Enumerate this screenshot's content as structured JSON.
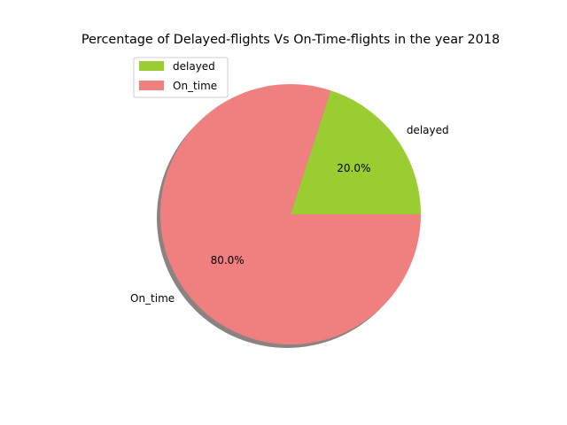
{
  "chart_data": {
    "type": "pie",
    "title": "Percentage of Delayed-flights Vs On-Time-flights in the year 2018",
    "categories": [
      "delayed",
      "On_time"
    ],
    "values": [
      20.0,
      80.0
    ],
    "percent_labels": [
      "20.0%",
      "80.0%"
    ],
    "colors": [
      "#9acd32",
      "#f08080"
    ],
    "shadow": true,
    "legend": {
      "placement": "upper-left",
      "entries": [
        "delayed",
        "On_time"
      ]
    }
  }
}
